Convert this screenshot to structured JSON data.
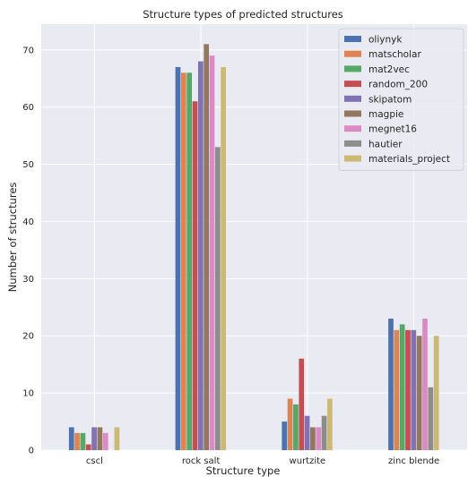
{
  "chart_data": {
    "type": "bar",
    "title": "Structure types of predicted structures",
    "xlabel": "Structure type",
    "ylabel": "Number of structures",
    "categories": [
      "cscl",
      "rock salt",
      "wurtzite",
      "zinc blende"
    ],
    "ylim": [
      0,
      74.5
    ],
    "yticks": [
      0,
      10,
      20,
      30,
      40,
      50,
      60,
      70
    ],
    "grid": true,
    "legend_position": "top-right",
    "series": [
      {
        "name": "oliynyk",
        "color": "#4c72b0",
        "values": [
          4,
          67,
          5,
          23
        ]
      },
      {
        "name": "matscholar",
        "color": "#dd8452",
        "values": [
          3,
          66,
          9,
          21
        ]
      },
      {
        "name": "mat2vec",
        "color": "#55a868",
        "values": [
          3,
          66,
          8,
          22
        ]
      },
      {
        "name": "random_200",
        "color": "#c44e52",
        "values": [
          1,
          61,
          16,
          21
        ]
      },
      {
        "name": "skipatom",
        "color": "#8172b3",
        "values": [
          4,
          68,
          6,
          21
        ]
      },
      {
        "name": "magpie",
        "color": "#937860",
        "values": [
          4,
          71,
          4,
          20
        ]
      },
      {
        "name": "megnet16",
        "color": "#da8bc3",
        "values": [
          3,
          69,
          4,
          23
        ]
      },
      {
        "name": "hautier",
        "color": "#8c8c8c",
        "values": [
          0,
          53,
          6,
          11
        ]
      },
      {
        "name": "materials_project",
        "color": "#ccb974",
        "values": [
          4,
          67,
          9,
          20
        ]
      }
    ]
  }
}
